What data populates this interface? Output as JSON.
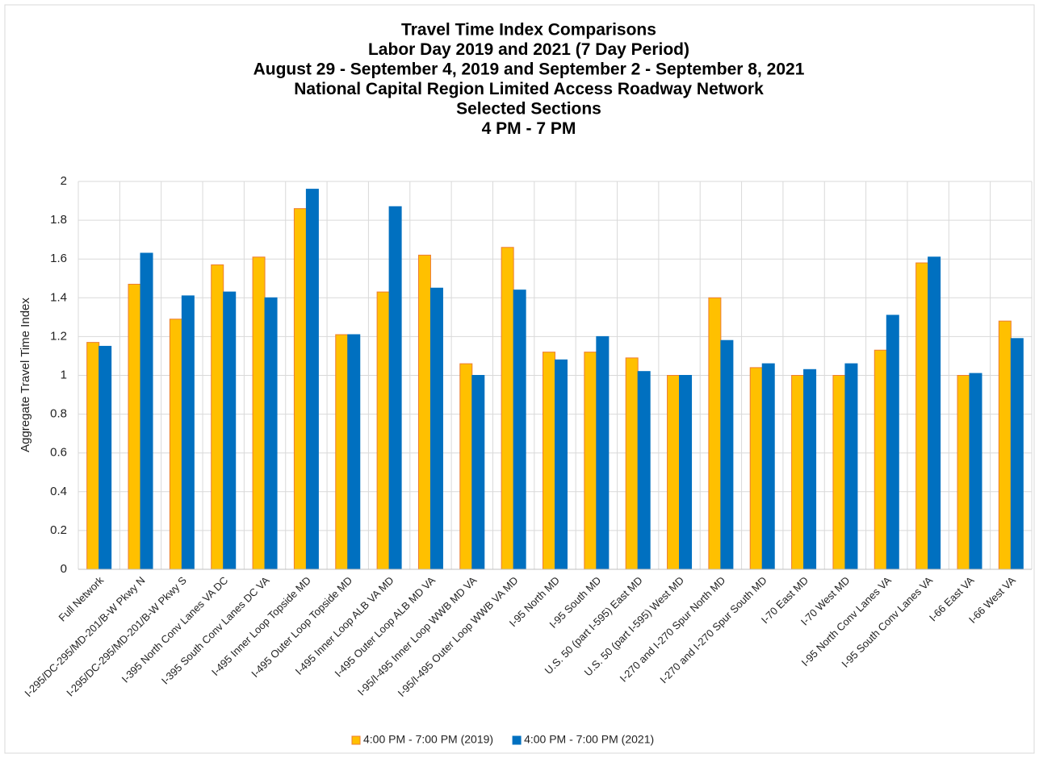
{
  "chart_data": {
    "type": "bar",
    "title": [
      "Travel Time Index Comparisons",
      "Labor Day 2019 and 2021 (7 Day Period)",
      "August 29 - September 4, 2019 and September 2 - September 8, 2021",
      "National Capital Region Limited Access Roadway Network",
      "Selected Sections",
      "4 PM - 7 PM"
    ],
    "y_label": "Aggregate Travel Time Index",
    "categories": [
      "Full  Network",
      "I-295/DC-295/MD-201/B-W Pkwy N",
      "I-295/DC-295/MD-201/B-W Pkwy S",
      "I-395 North Conv Lanes VA DC",
      "I-395 South Conv Lanes DC VA",
      "I-495 Inner Loop Topside MD",
      "I-495 Outer Loop Topside MD",
      "I-495 Inner Loop ALB VA MD",
      "I-495 Outer Loop ALB MD VA",
      "I-95/I-495 Inner Loop WWB MD VA",
      "I-95/I-495 Outer Loop WWB VA MD",
      "I-95 North MD",
      "I-95 South MD",
      "U.S. 50 (part I-595) East MD",
      "U.S. 50 (part I-595) West MD",
      "I-270 and I-270 Spur North MD",
      "I-270 and I-270 Spur South MD",
      "I-70 East MD",
      "I-70 West MD",
      "I-95 North Conv Lanes VA",
      "I-95 South Conv Lanes VA",
      "I-66 East VA",
      "I-66 West VA"
    ],
    "series": [
      {
        "name": "4:00 PM - 7:00 PM (2019)",
        "color": "#FFC000",
        "edge": "#ED7D31",
        "values": [
          1.17,
          1.47,
          1.29,
          1.57,
          1.61,
          1.86,
          1.21,
          1.43,
          1.62,
          1.06,
          1.66,
          1.12,
          1.12,
          1.09,
          1.0,
          1.4,
          1.04,
          1.0,
          1.0,
          1.13,
          1.58,
          1.0,
          1.28
        ]
      },
      {
        "name": "4:00 PM - 7:00 PM (2021)",
        "color": "#0070C0",
        "edge": "#0070C0",
        "values": [
          1.15,
          1.63,
          1.41,
          1.43,
          1.4,
          1.96,
          1.21,
          1.87,
          1.45,
          1.0,
          1.44,
          1.08,
          1.2,
          1.02,
          1.0,
          1.18,
          1.06,
          1.03,
          1.06,
          1.31,
          1.61,
          1.01,
          1.19
        ]
      }
    ],
    "ylim": [
      0,
      2
    ],
    "yticks": [
      0,
      0.2,
      0.4,
      0.6,
      0.8,
      1,
      1.2,
      1.4,
      1.6,
      1.8,
      2
    ],
    "grid": true,
    "legend": "bottom"
  }
}
